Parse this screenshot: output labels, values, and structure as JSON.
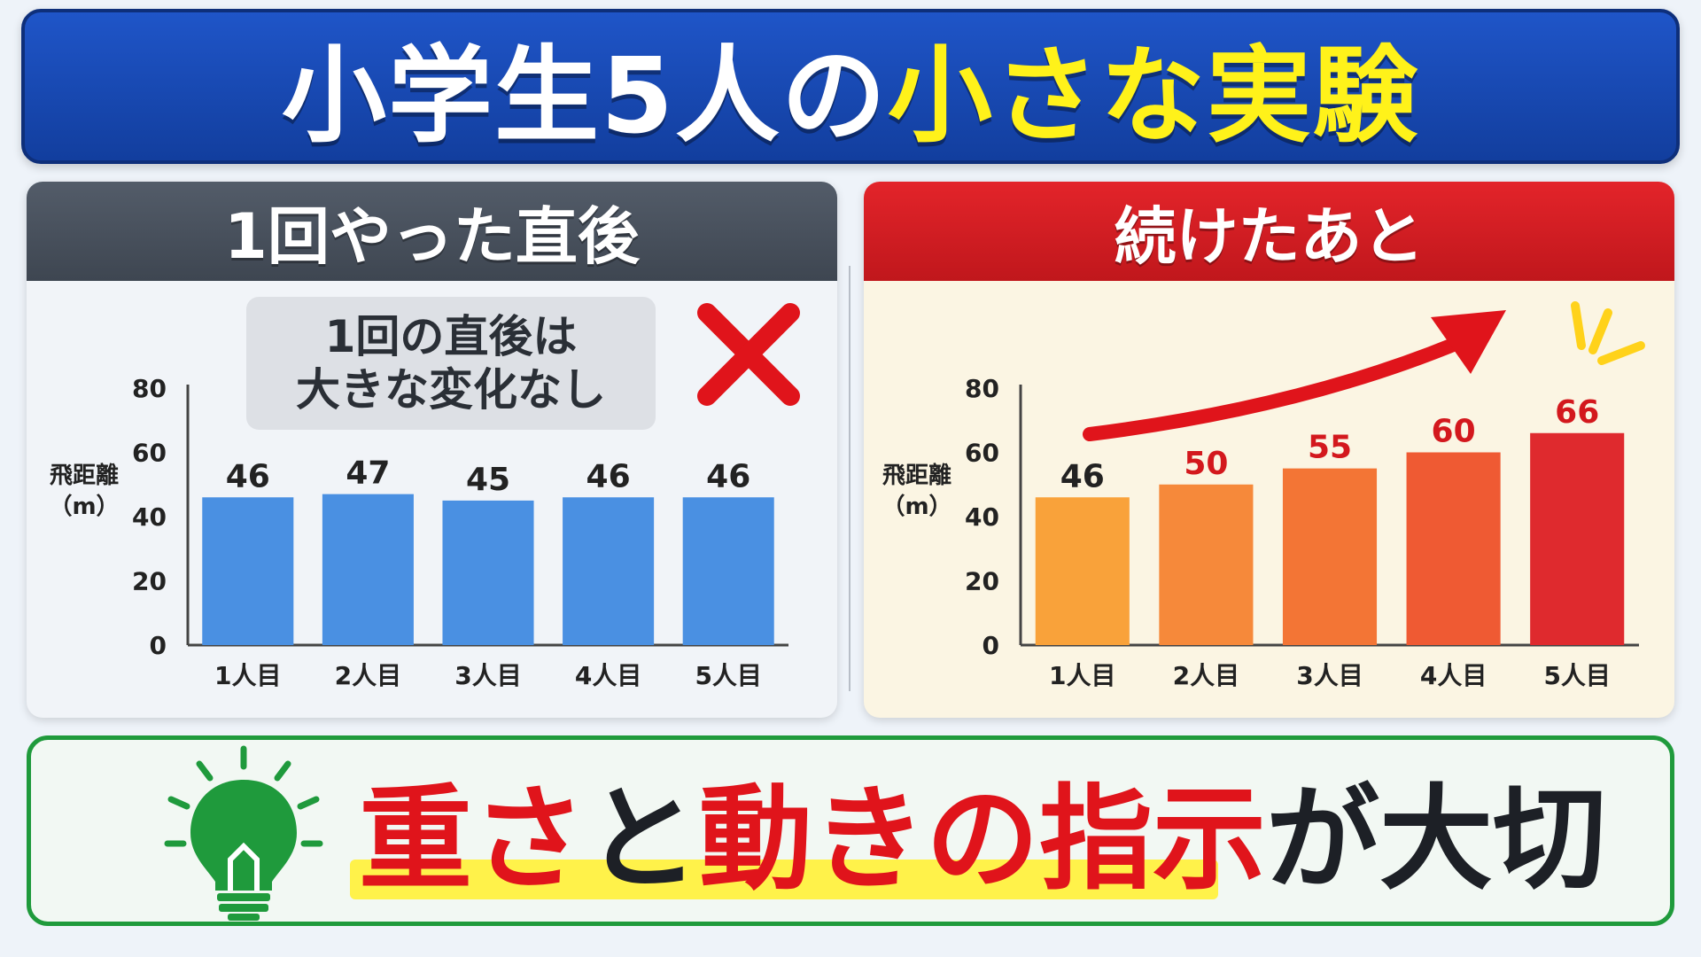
{
  "title": {
    "part1": "小学生5人の",
    "part2": "小さな実験"
  },
  "left_panel": {
    "header": "1回やった直後",
    "note_line1": "1回の直後は",
    "note_line2": "大きな変化なし"
  },
  "right_panel": {
    "header": "続けたあと"
  },
  "bottom": {
    "seg1": "重さ",
    "seg2": "と",
    "seg3": "動きの指示",
    "seg4": "が大切"
  },
  "colors": {
    "left_bar": "#4a90e2",
    "right_bars": [
      "#f9a23a",
      "#f6893a",
      "#f37535",
      "#ef5a33",
      "#df2a2e"
    ],
    "accent_red": "#e0141b",
    "title_yellow": "#fff21a"
  },
  "icons": {
    "cross": "cross-icon",
    "arrow": "up-arrow-icon",
    "bulb": "lightbulb-icon"
  },
  "chart_data": [
    {
      "type": "bar",
      "categories": [
        "1人目",
        "2人目",
        "3人目",
        "4人目",
        "5人目"
      ],
      "values": [
        46,
        47,
        45,
        46,
        46
      ],
      "ylabel_line1": "飛距離",
      "ylabel_line2": "（m）",
      "ylim": [
        0,
        80
      ],
      "yticks": [
        0,
        20,
        40,
        60,
        80
      ]
    },
    {
      "type": "bar",
      "categories": [
        "1人目",
        "2人目",
        "3人目",
        "4人目",
        "5人目"
      ],
      "values": [
        46,
        50,
        55,
        60,
        66
      ],
      "ylabel_line1": "飛距離",
      "ylabel_line2": "（m）",
      "ylim": [
        0,
        80
      ],
      "yticks": [
        0,
        20,
        40,
        60,
        80
      ]
    }
  ]
}
